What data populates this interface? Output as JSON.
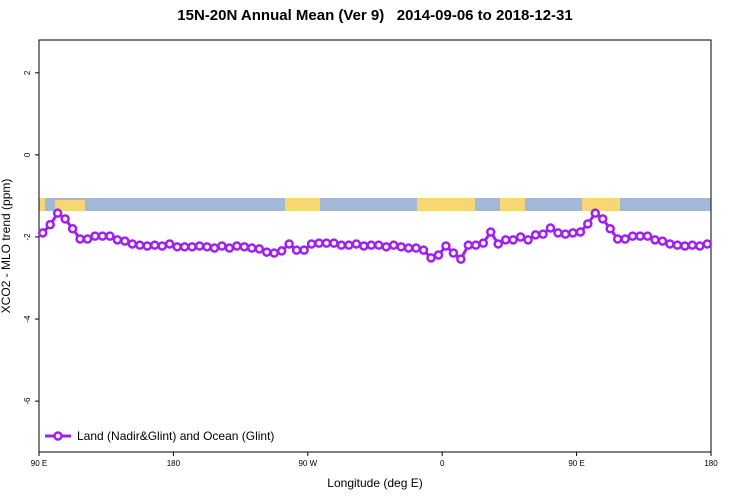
{
  "chart_data": {
    "type": "line",
    "title": "15N-20N Annual Mean (Ver 9)   2014-09-06 to 2018-12-31",
    "x_label": "Longitude (deg E)",
    "y_label": "XCO2 - MLO trend (ppm)",
    "xlim": [
      90,
      540
    ],
    "ylim": [
      -7.24,
      2.8
    ],
    "xticks": [
      {
        "value": 90,
        "label": "90 E"
      },
      180,
      {
        "value": 270,
        "label": "90 W"
      },
      {
        "value": 360,
        "label": "0"
      },
      {
        "value": 450,
        "label": "90 E"
      },
      {
        "value": 540,
        "label": "180"
      }
    ],
    "yticks": [
      2,
      0,
      -2,
      -4,
      -6
    ],
    "legend": "bottom-left",
    "x": [
      92.5,
      97.5,
      102.5,
      107.5,
      112.5,
      117.5,
      122.5,
      127.5,
      132.5,
      137.5,
      142.5,
      147.5,
      152.5,
      157.5,
      162.5,
      167.5,
      172.5,
      177.5,
      182.5,
      187.5,
      192.5,
      197.5,
      202.5,
      207.5,
      212.5,
      217.5,
      222.5,
      227.5,
      232.5,
      237.5,
      242.5,
      247.5,
      252.5,
      257.5,
      262.5,
      267.5,
      272.5,
      277.5,
      282.5,
      287.5,
      292.5,
      297.5,
      302.5,
      307.5,
      312.5,
      317.5,
      322.5,
      327.5,
      332.5,
      337.5,
      342.5,
      347.5,
      352.5,
      357.5,
      362.5,
      367.5,
      372.5,
      377.5,
      382.5,
      387.5,
      392.5,
      397.5,
      402.5,
      407.5,
      412.5,
      417.5,
      422.5,
      427.5,
      432.5,
      437.5,
      442.5,
      447.5,
      452.5,
      457.5,
      462.5,
      467.5,
      472.5,
      477.5,
      482.5,
      487.5,
      492.5,
      497.5,
      502.5,
      507.5,
      512.5,
      517.5,
      522.5,
      527.5,
      532.5,
      537.5
    ],
    "series": [
      {
        "name": "Land (Nadir&Glint) and Ocean (Glint)",
        "color": "#a020f0",
        "values": [
          -1.9,
          -1.7,
          -1.42,
          -1.56,
          -1.8,
          -2.05,
          -2.05,
          -1.98,
          -1.98,
          -1.98,
          -2.07,
          -2.1,
          -2.17,
          -2.2,
          -2.22,
          -2.2,
          -2.22,
          -2.17,
          -2.24,
          -2.24,
          -2.24,
          -2.22,
          -2.24,
          -2.27,
          -2.22,
          -2.27,
          -2.22,
          -2.24,
          -2.27,
          -2.29,
          -2.37,
          -2.39,
          -2.34,
          -2.17,
          -2.32,
          -2.32,
          -2.17,
          -2.15,
          -2.15,
          -2.15,
          -2.2,
          -2.2,
          -2.17,
          -2.22,
          -2.2,
          -2.2,
          -2.24,
          -2.2,
          -2.24,
          -2.27,
          -2.27,
          -2.32,
          -2.51,
          -2.44,
          -2.22,
          -2.39,
          -2.54,
          -2.2,
          -2.2,
          -2.15,
          -1.88,
          -2.17,
          -2.07,
          -2.07,
          -2.0,
          -2.07,
          -1.95,
          -1.93,
          -1.78,
          -1.9,
          -1.93,
          -1.9,
          -1.88,
          -1.68,
          -1.42,
          -1.56,
          -1.8,
          -2.05,
          -2.05,
          -1.98,
          -1.98,
          -1.98,
          -2.07,
          -2.1,
          -2.17,
          -2.2,
          -2.22,
          -2.2,
          -2.22,
          -2.17
        ]
      }
    ]
  }
}
